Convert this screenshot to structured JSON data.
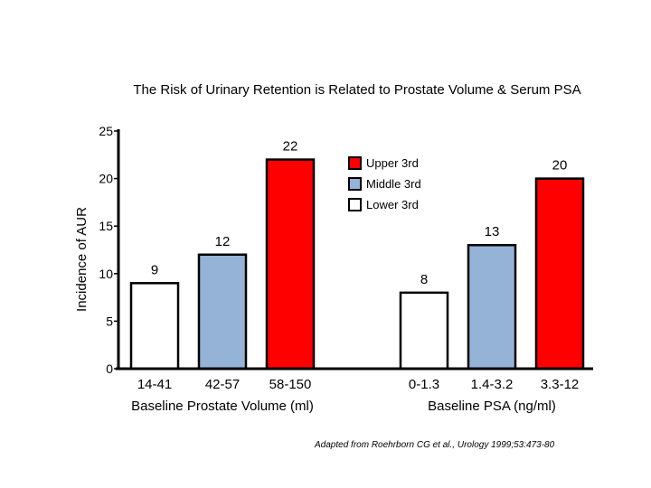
{
  "title": "The Risk of Urinary Retention is Related to Prostate Volume & Serum PSA",
  "citation": "Adapted from Roehrborn CG et al.,  Urology 1999;53:473-80",
  "chart_data": {
    "type": "bar",
    "ylabel": "Incidence of AUR",
    "ylim": [
      0,
      25
    ],
    "yticks": [
      0,
      5,
      10,
      15,
      20,
      25
    ],
    "grid": false,
    "legend_position": "top-center",
    "legend": [
      {
        "name": "Upper 3rd",
        "color": "#ff0000"
      },
      {
        "name": "Middle 3rd",
        "color": "#95b3d7"
      },
      {
        "name": "Lower 3rd",
        "color": "#ffffff"
      }
    ],
    "groups": [
      {
        "xlabel": "Baseline Prostate Volume (ml)",
        "bars": [
          {
            "category": "14-41",
            "value": 9,
            "tier": "Lower 3rd",
            "color": "#ffffff"
          },
          {
            "category": "42-57",
            "value": 12,
            "tier": "Middle 3rd",
            "color": "#95b3d7"
          },
          {
            "category": "58-150",
            "value": 22,
            "tier": "Upper 3rd",
            "color": "#ff0000"
          }
        ]
      },
      {
        "xlabel": "Baseline PSA (ng/ml)",
        "bars": [
          {
            "category": "0-1.3",
            "value": 8,
            "tier": "Lower 3rd",
            "color": "#ffffff"
          },
          {
            "category": "1.4-3.2",
            "value": 13,
            "tier": "Middle 3rd",
            "color": "#95b3d7"
          },
          {
            "category": "3.3-12",
            "value": 20,
            "tier": "Upper 3rd",
            "color": "#ff0000"
          }
        ]
      }
    ]
  }
}
